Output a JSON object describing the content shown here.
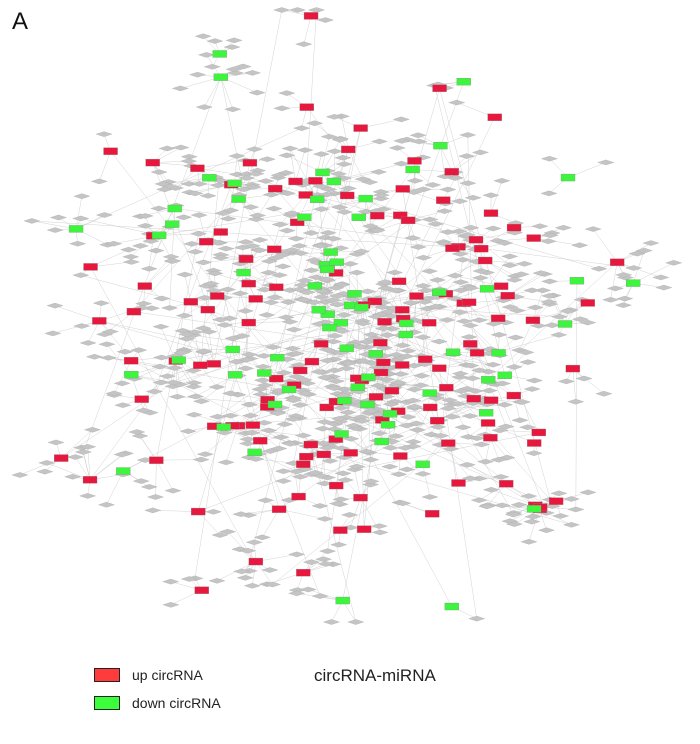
{
  "panel_label": "A",
  "title": "circRNA-miRNA",
  "legend": {
    "up": {
      "label": "up circRNA",
      "color": "#ff3b3b"
    },
    "down": {
      "label": "down circRNA",
      "color": "#3cff3c"
    }
  },
  "colors": {
    "up_node": "#e8173e",
    "down_node": "#3cf53c",
    "mirna_node": "#c4c4c4",
    "edge": "#c8c8c8"
  },
  "node_counts_estimate": {
    "up_circrna": 140,
    "down_circrna": 70,
    "mirna": 900
  }
}
